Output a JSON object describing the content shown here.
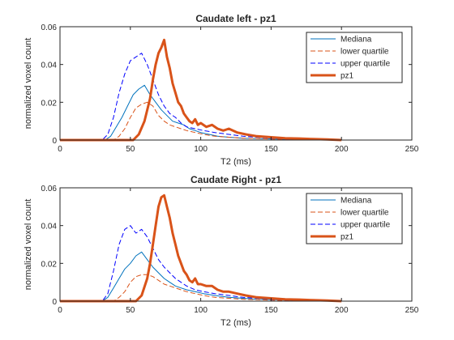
{
  "chart_data": [
    {
      "type": "line",
      "title": "Caudate left - pz1",
      "xlabel": "T2 (ms)",
      "ylabel": "normalized voxel count",
      "xlim": [
        0,
        250
      ],
      "ylim": [
        0,
        0.06
      ],
      "xticks": [
        0,
        50,
        100,
        150,
        200,
        250
      ],
      "yticks": [
        0,
        0.02,
        0.04,
        0.06
      ],
      "xtick_labels": [
        "0",
        "50",
        "100",
        "150",
        "200",
        "250"
      ],
      "ytick_labels": [
        "0",
        "0.02",
        "0.04",
        "0.06"
      ],
      "legend_position": "top-right",
      "series": [
        {
          "name": "Mediana",
          "color": "#0072BD",
          "style": "solid",
          "width": 1,
          "x": [
            0,
            32,
            36,
            40,
            44,
            48,
            52,
            56,
            60,
            64,
            68,
            72,
            76,
            80,
            84,
            88,
            92,
            96,
            100,
            106,
            112,
            120,
            130,
            140,
            150,
            160,
            170,
            180,
            190,
            200
          ],
          "y": [
            0,
            0,
            0.002,
            0.007,
            0.012,
            0.018,
            0.024,
            0.027,
            0.029,
            0.024,
            0.02,
            0.016,
            0.013,
            0.01,
            0.009,
            0.008,
            0.006,
            0.005,
            0.004,
            0.003,
            0.002,
            0.0015,
            0.001,
            0.0008,
            0.0006,
            0.0004,
            0.0003,
            0.0002,
            0.0001,
            0
          ]
        },
        {
          "name": "lower quartile",
          "color": "#D95319",
          "style": "dashed",
          "width": 1,
          "x": [
            0,
            38,
            42,
            46,
            50,
            54,
            58,
            62,
            66,
            70,
            74,
            78,
            82,
            86,
            90,
            96,
            102,
            110,
            120,
            130,
            140,
            150,
            160,
            180,
            200
          ],
          "y": [
            0,
            0,
            0.002,
            0.006,
            0.012,
            0.017,
            0.019,
            0.02,
            0.018,
            0.013,
            0.01,
            0.008,
            0.007,
            0.006,
            0.005,
            0.004,
            0.003,
            0.002,
            0.0015,
            0.001,
            0.0008,
            0.0005,
            0.0003,
            0.0001,
            0
          ]
        },
        {
          "name": "upper quartile",
          "color": "#0000FF",
          "style": "dashed",
          "width": 1,
          "x": [
            0,
            30,
            34,
            38,
            42,
            46,
            50,
            54,
            58,
            62,
            66,
            70,
            74,
            78,
            82,
            86,
            90,
            96,
            102,
            110,
            120,
            130,
            140,
            150,
            160,
            180,
            200
          ],
          "y": [
            0,
            0,
            0.003,
            0.012,
            0.025,
            0.035,
            0.042,
            0.044,
            0.046,
            0.04,
            0.032,
            0.024,
            0.018,
            0.014,
            0.012,
            0.009,
            0.007,
            0.006,
            0.005,
            0.004,
            0.003,
            0.002,
            0.0015,
            0.001,
            0.0006,
            0.0002,
            0
          ]
        },
        {
          "name": "pz1",
          "color": "#D95319",
          "style": "solid",
          "width": 3,
          "x": [
            0,
            52,
            56,
            60,
            64,
            66,
            68,
            70,
            72,
            74,
            76,
            78,
            80,
            82,
            84,
            86,
            88,
            90,
            92,
            94,
            96,
            98,
            100,
            104,
            108,
            112,
            116,
            120,
            126,
            132,
            140,
            150,
            160,
            170,
            180,
            190,
            200
          ],
          "y": [
            0,
            0,
            0.003,
            0.01,
            0.022,
            0.032,
            0.04,
            0.046,
            0.049,
            0.053,
            0.044,
            0.038,
            0.03,
            0.025,
            0.02,
            0.018,
            0.014,
            0.012,
            0.01,
            0.009,
            0.011,
            0.008,
            0.009,
            0.007,
            0.008,
            0.006,
            0.005,
            0.006,
            0.004,
            0.003,
            0.002,
            0.0015,
            0.001,
            0.0008,
            0.0005,
            0.0003,
            0
          ]
        }
      ]
    },
    {
      "type": "line",
      "title": "Caudate Right - pz1",
      "xlabel": "T2 (ms)",
      "ylabel": "normalized voxel count",
      "xlim": [
        0,
        250
      ],
      "ylim": [
        0,
        0.06
      ],
      "xticks": [
        0,
        50,
        100,
        150,
        200,
        250
      ],
      "yticks": [
        0,
        0.02,
        0.04,
        0.06
      ],
      "xtick_labels": [
        "0",
        "50",
        "100",
        "150",
        "200",
        "250"
      ],
      "ytick_labels": [
        "0",
        "0.02",
        "0.04",
        "0.06"
      ],
      "legend_position": "top-right",
      "series": [
        {
          "name": "Mediana",
          "color": "#0072BD",
          "style": "solid",
          "width": 1,
          "x": [
            0,
            30,
            34,
            38,
            42,
            46,
            50,
            54,
            58,
            62,
            66,
            70,
            74,
            78,
            82,
            86,
            90,
            96,
            102,
            110,
            120,
            130,
            140,
            150,
            160,
            170,
            180,
            190,
            200
          ],
          "y": [
            0,
            0,
            0.002,
            0.007,
            0.012,
            0.017,
            0.02,
            0.024,
            0.026,
            0.022,
            0.018,
            0.015,
            0.012,
            0.01,
            0.008,
            0.007,
            0.006,
            0.005,
            0.004,
            0.003,
            0.002,
            0.0015,
            0.001,
            0.0008,
            0.0005,
            0.0003,
            0.0002,
            0.0001,
            0
          ]
        },
        {
          "name": "lower quartile",
          "color": "#D95319",
          "style": "dashed",
          "width": 1,
          "x": [
            0,
            38,
            42,
            46,
            50,
            54,
            58,
            62,
            66,
            70,
            74,
            78,
            82,
            86,
            90,
            96,
            102,
            110,
            120,
            130,
            140,
            150,
            160,
            180,
            200
          ],
          "y": [
            0,
            0,
            0.002,
            0.005,
            0.01,
            0.013,
            0.014,
            0.014,
            0.013,
            0.011,
            0.009,
            0.008,
            0.007,
            0.006,
            0.005,
            0.004,
            0.003,
            0.002,
            0.0015,
            0.001,
            0.0008,
            0.0005,
            0.0003,
            0.0001,
            0
          ]
        },
        {
          "name": "upper quartile",
          "color": "#0000FF",
          "style": "dashed",
          "width": 1,
          "x": [
            0,
            30,
            34,
            38,
            42,
            46,
            50,
            54,
            58,
            62,
            66,
            70,
            74,
            78,
            82,
            86,
            90,
            96,
            102,
            110,
            120,
            130,
            140,
            150,
            160,
            180,
            200
          ],
          "y": [
            0,
            0,
            0.004,
            0.016,
            0.03,
            0.038,
            0.04,
            0.036,
            0.038,
            0.034,
            0.028,
            0.022,
            0.018,
            0.015,
            0.012,
            0.01,
            0.008,
            0.006,
            0.005,
            0.004,
            0.003,
            0.002,
            0.0015,
            0.001,
            0.0006,
            0.0002,
            0
          ]
        },
        {
          "name": "pz1",
          "color": "#D95319",
          "style": "solid",
          "width": 3,
          "x": [
            0,
            54,
            58,
            62,
            64,
            66,
            68,
            70,
            72,
            74,
            76,
            78,
            80,
            82,
            84,
            86,
            88,
            90,
            92,
            94,
            96,
            98,
            100,
            104,
            108,
            112,
            116,
            120,
            126,
            132,
            140,
            150,
            160,
            170,
            180,
            190,
            200
          ],
          "y": [
            0,
            0,
            0.003,
            0.012,
            0.02,
            0.03,
            0.04,
            0.05,
            0.055,
            0.056,
            0.05,
            0.044,
            0.036,
            0.03,
            0.024,
            0.02,
            0.016,
            0.014,
            0.011,
            0.01,
            0.012,
            0.009,
            0.009,
            0.008,
            0.008,
            0.006,
            0.005,
            0.005,
            0.004,
            0.003,
            0.002,
            0.0015,
            0.001,
            0.0008,
            0.0005,
            0.0003,
            0
          ]
        }
      ]
    }
  ]
}
